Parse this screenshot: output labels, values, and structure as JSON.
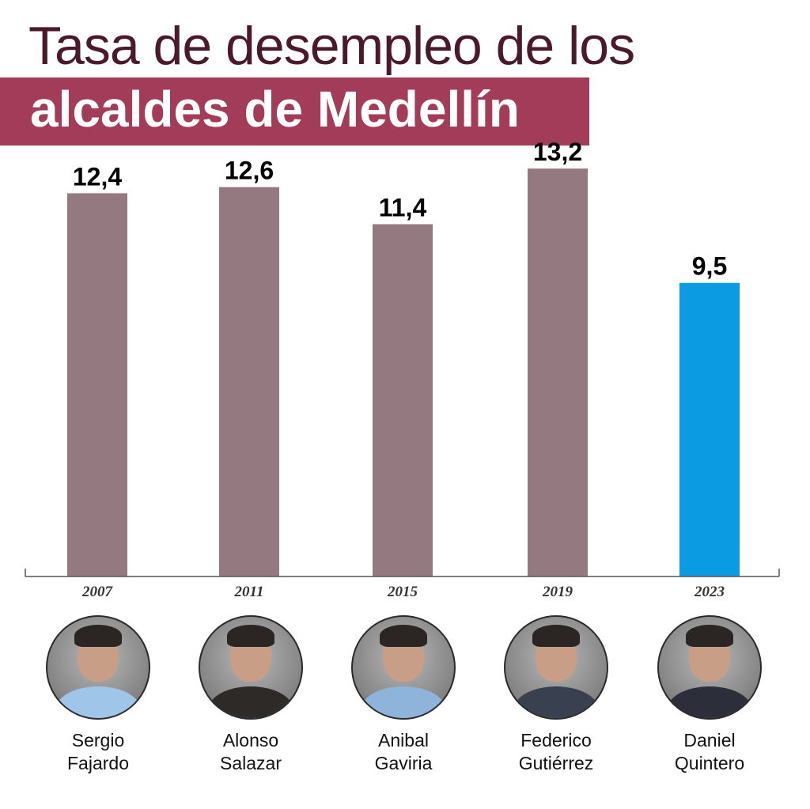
{
  "title": {
    "line1": "Tasa de desempleo de los",
    "line2": "alcaldes de Medellín"
  },
  "colors": {
    "title_text": "#4a1a2c",
    "title_band": "#a23c59",
    "bar_default": "#957980",
    "bar_highlight": "#0a9be3",
    "axis": "#555555"
  },
  "chart_data": {
    "type": "bar",
    "categories": [
      "2007",
      "2011",
      "2015",
      "2019",
      "2023"
    ],
    "values": [
      12.4,
      12.6,
      11.4,
      13.2,
      9.5
    ],
    "value_labels": [
      "12,4",
      "12,6",
      "11,4",
      "13,2",
      "9,5"
    ],
    "highlight_index": 4,
    "title": "Tasa de desempleo de los alcaldes de Medellín",
    "xlabel": "",
    "ylabel": "",
    "ylim": [
      0,
      16.3
    ],
    "grid": false,
    "legend": "none"
  },
  "mayors": [
    {
      "first": "Sergio",
      "last": "Fajardo",
      "shirt": "#9fc6e8"
    },
    {
      "first": "Alonso",
      "last": "Salazar",
      "shirt": "#2e2a28"
    },
    {
      "first": "Anibal",
      "last": "Gaviria",
      "shirt": "#8fb4dc"
    },
    {
      "first": "Federico",
      "last": "Gutiérrez",
      "shirt": "#394050"
    },
    {
      "first": "Daniel",
      "last": "Quintero",
      "shirt": "#2c2f3a"
    }
  ]
}
